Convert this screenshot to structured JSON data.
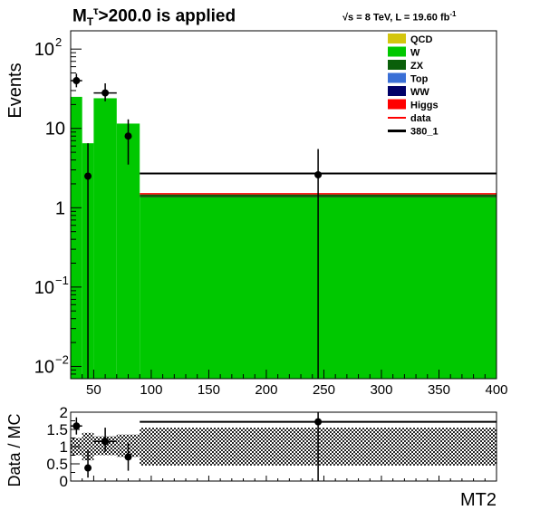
{
  "chart_data": [
    {
      "type": "bar",
      "title_prefix": "M",
      "title_sub": "T",
      "title_sup": "τ",
      "title_rest": ">200.0 is applied",
      "lumi_prefix": "√s = 8 TeV, L = 19.60 fb",
      "lumi_exp": "-1",
      "ylabel": "Events",
      "yscale": "log",
      "xlim": [
        30,
        400
      ],
      "ylim": [
        0.007,
        170
      ],
      "x_ticks": [
        50,
        100,
        150,
        200,
        250,
        300,
        350,
        400
      ],
      "y_ticks": [
        {
          "value": 0.01,
          "base": "10",
          "exp": "−2"
        },
        {
          "value": 0.1,
          "base": "10",
          "exp": "−1"
        },
        {
          "value": 1,
          "base": "1",
          "exp": ""
        },
        {
          "value": 10,
          "base": "10",
          "exp": ""
        },
        {
          "value": 100,
          "base": "10",
          "exp": "2"
        }
      ],
      "legend": [
        {
          "label": "QCD",
          "color": "#d4c60e",
          "style": "box"
        },
        {
          "label": "W",
          "color": "#00c800",
          "style": "box"
        },
        {
          "label": "ZX",
          "color": "#0a5f0a",
          "style": "box"
        },
        {
          "label": "Top",
          "color": "#3a6fd6",
          "style": "box"
        },
        {
          "label": "WW",
          "color": "#000068",
          "style": "box"
        },
        {
          "label": "Higgs",
          "color": "#ff0000",
          "style": "box"
        },
        {
          "label": "data",
          "color": "#ff0000",
          "style": "line"
        },
        {
          "label": "380_1",
          "color": "#000000",
          "style": "thickline"
        }
      ],
      "stack_bins": [
        {
          "x0": 30,
          "x1": 40,
          "W": 25
        },
        {
          "x0": 40,
          "x1": 50,
          "W": 6.5
        },
        {
          "x0": 50,
          "x1": 70,
          "W": 24
        },
        {
          "x0": 70,
          "x1": 90,
          "W": 11.5
        },
        {
          "x0": 90,
          "x1": 400,
          "W": 1.35,
          "ZX": 0.12,
          "Higgs": 0.06
        }
      ],
      "signal_380_1": [
        {
          "x0": 90,
          "x1": 400,
          "y": 2.7
        }
      ],
      "data_points": [
        {
          "x": 35,
          "y": 40,
          "ylo": 33,
          "yhi": 49,
          "xerr": 5
        },
        {
          "x": 45,
          "y": 2.5,
          "ylo": 0.007,
          "yhi": 6.5,
          "xerr": 0
        },
        {
          "x": 60,
          "y": 28,
          "ylo": 22,
          "yhi": 37,
          "xerr": 10
        },
        {
          "x": 80,
          "y": 8,
          "ylo": 3.5,
          "yhi": 13,
          "xerr": 0
        },
        {
          "x": 245,
          "y": 2.6,
          "ylo": 0.007,
          "yhi": 5.5,
          "xerr": 0
        }
      ]
    },
    {
      "type": "scatter",
      "ylabel": "Data / MC",
      "xlabel": "MT2",
      "xlim": [
        30,
        400
      ],
      "ylim": [
        0,
        2
      ],
      "y_ticks": [
        {
          "value": 0,
          "label": "0"
        },
        {
          "value": 0.5,
          "label": "0.5"
        },
        {
          "value": 1,
          "label": "1"
        },
        {
          "value": 1.5,
          "label": "1.5"
        },
        {
          "value": 2,
          "label": "2"
        }
      ],
      "unc_band": [
        {
          "x0": 30,
          "x1": 40,
          "lo": 0.75,
          "hi": 1.25
        },
        {
          "x0": 40,
          "x1": 50,
          "lo": 0.6,
          "hi": 1.4
        },
        {
          "x0": 50,
          "x1": 70,
          "lo": 0.75,
          "hi": 1.3
        },
        {
          "x0": 70,
          "x1": 90,
          "lo": 0.7,
          "hi": 1.35
        },
        {
          "x0": 90,
          "x1": 400,
          "lo": 0.45,
          "hi": 1.55
        }
      ],
      "signal_ratio": [
        {
          "x0": 90,
          "x1": 400,
          "y": 1.72
        }
      ],
      "ratio_points": [
        {
          "x": 35,
          "y": 1.6,
          "ylo": 1.35,
          "yhi": 1.85,
          "xerr": 5
        },
        {
          "x": 45,
          "y": 0.38,
          "ylo": 0.1,
          "yhi": 0.9,
          "xerr": 0
        },
        {
          "x": 60,
          "y": 1.15,
          "ylo": 0.85,
          "yhi": 1.55,
          "xerr": 10
        },
        {
          "x": 80,
          "y": 0.7,
          "ylo": 0.3,
          "yhi": 1.1,
          "xerr": 0
        },
        {
          "x": 245,
          "y": 1.72,
          "ylo": 0.0,
          "yhi": 2.0,
          "xerr": 0
        }
      ]
    }
  ]
}
